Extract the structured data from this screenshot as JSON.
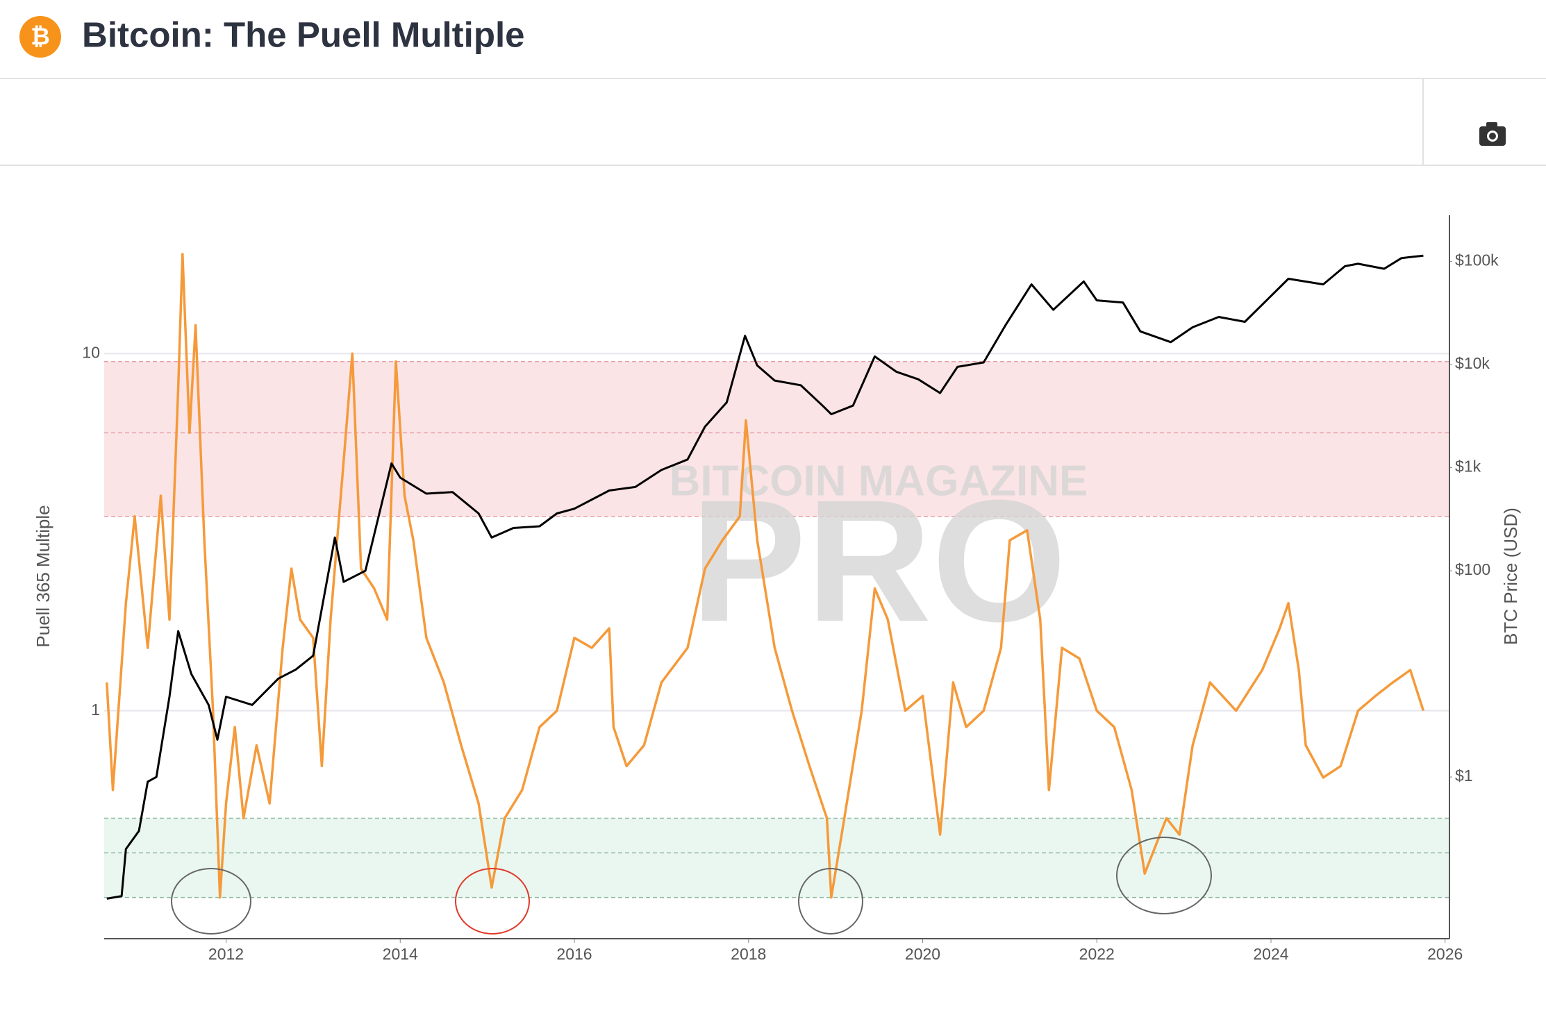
{
  "header": {
    "logo_symbol": "₿",
    "title": "Bitcoin: The Puell Multiple"
  },
  "chart_data": {
    "type": "line",
    "watermark": [
      "BITCOIN MAGAZINE",
      "PRO"
    ],
    "y_label": "Puell 365 Multiple",
    "y2_label": "BTC Price (USD)",
    "xlim": [
      2010.6,
      2026.05
    ],
    "xticks": [
      2012,
      2014,
      2016,
      2018,
      2020,
      2022,
      2024,
      2026
    ],
    "ylim": [
      0.23,
      24.4
    ],
    "ylog": true,
    "yticks": [
      1,
      10
    ],
    "y2lim": [
      0.027,
      281000
    ],
    "y2log": true,
    "y2ticks": [
      {
        "value": 1,
        "label": "$1"
      },
      {
        "value": 100,
        "label": "$100"
      },
      {
        "value": 1000,
        "label": "$1k"
      },
      {
        "value": 10000,
        "label": "$10k"
      },
      {
        "value": 100000,
        "label": "$100k"
      }
    ],
    "grid": true,
    "zones": [
      {
        "from": 3.5,
        "to": 9.5,
        "lines": [
          3.5,
          6,
          9.5
        ],
        "color": "#fbe4e6",
        "line_color": "#e8a0a8"
      },
      {
        "from": 0.3,
        "to": 0.5,
        "lines": [
          0.3,
          0.4,
          0.5
        ],
        "color": "#eaf7f0",
        "line_color": "#8fb8a0"
      }
    ],
    "series": [
      {
        "name": "Puell Multiple",
        "color": "#f59a3a",
        "axis": "y",
        "x": [
          2010.63,
          2010.7,
          2010.85,
          2010.95,
          2011.1,
          2011.25,
          2011.35,
          2011.45,
          2011.5,
          2011.58,
          2011.65,
          2011.75,
          2011.85,
          2011.93,
          2012.0,
          2012.1,
          2012.2,
          2012.35,
          2012.5,
          2012.65,
          2012.75,
          2012.85,
          2013.0,
          2013.1,
          2013.2,
          2013.35,
          2013.45,
          2013.55,
          2013.7,
          2013.85,
          2013.95,
          2014.05,
          2014.15,
          2014.3,
          2014.5,
          2014.7,
          2014.9,
          2015.05,
          2015.2,
          2015.4,
          2015.6,
          2015.8,
          2016.0,
          2016.2,
          2016.4,
          2016.45,
          2016.6,
          2016.8,
          2017.0,
          2017.3,
          2017.5,
          2017.7,
          2017.9,
          2017.97,
          2018.1,
          2018.3,
          2018.5,
          2018.7,
          2018.9,
          2018.95,
          2019.1,
          2019.3,
          2019.45,
          2019.6,
          2019.8,
          2020.0,
          2020.2,
          2020.35,
          2020.5,
          2020.7,
          2020.9,
          2021.0,
          2021.2,
          2021.35,
          2021.45,
          2021.6,
          2021.8,
          2022.0,
          2022.2,
          2022.4,
          2022.55,
          2022.8,
          2022.95,
          2023.1,
          2023.3,
          2023.6,
          2023.9,
          2024.1,
          2024.2,
          2024.32,
          2024.4,
          2024.6,
          2024.8,
          2025.0,
          2025.2,
          2025.4,
          2025.6,
          2025.75
        ],
        "values": [
          1.2,
          0.6,
          2.0,
          3.5,
          1.5,
          4.0,
          1.8,
          8,
          19,
          6,
          12,
          3,
          1.0,
          0.3,
          0.55,
          0.9,
          0.5,
          0.8,
          0.55,
          1.5,
          2.5,
          1.8,
          1.6,
          0.7,
          1.8,
          5,
          10,
          2.5,
          2.2,
          1.8,
          9.5,
          4,
          3,
          1.6,
          1.2,
          0.8,
          0.55,
          0.32,
          0.5,
          0.6,
          0.9,
          1.0,
          1.6,
          1.5,
          1.7,
          0.9,
          0.7,
          0.8,
          1.2,
          1.5,
          2.5,
          3,
          3.5,
          6.5,
          3,
          1.5,
          1.0,
          0.7,
          0.5,
          0.3,
          0.5,
          1.0,
          2.2,
          1.8,
          1.0,
          1.1,
          0.45,
          1.2,
          0.9,
          1.0,
          1.5,
          3,
          3.2,
          1.8,
          0.6,
          1.5,
          1.4,
          1.0,
          0.9,
          0.6,
          0.35,
          0.5,
          0.45,
          0.8,
          1.2,
          1.0,
          1.3,
          1.7,
          2.0,
          1.3,
          0.8,
          0.65,
          0.7,
          1.0,
          1.1,
          1.2,
          1.3,
          1.0
        ]
      },
      {
        "name": "BTC Price",
        "color": "#000000",
        "axis": "y2",
        "x": [
          2010.63,
          2010.8,
          2010.85,
          2011.0,
          2011.1,
          2011.2,
          2011.35,
          2011.45,
          2011.6,
          2011.8,
          2011.9,
          2012.0,
          2012.3,
          2012.6,
          2012.8,
          2013.0,
          2013.25,
          2013.35,
          2013.6,
          2013.9,
          2014.0,
          2014.3,
          2014.6,
          2014.9,
          2015.05,
          2015.3,
          2015.6,
          2015.8,
          2016.0,
          2016.4,
          2016.7,
          2017.0,
          2017.3,
          2017.5,
          2017.75,
          2017.96,
          2018.1,
          2018.3,
          2018.6,
          2018.85,
          2018.95,
          2019.2,
          2019.45,
          2019.7,
          2019.95,
          2020.2,
          2020.4,
          2020.7,
          2020.95,
          2021.25,
          2021.5,
          2021.85,
          2022.0,
          2022.3,
          2022.5,
          2022.85,
          2023.1,
          2023.4,
          2023.7,
          2023.95,
          2024.2,
          2024.6,
          2024.85,
          2025.0,
          2025.3,
          2025.5,
          2025.75
        ],
        "values": [
          0.066,
          0.07,
          0.2,
          0.3,
          0.9,
          1.0,
          6,
          26,
          10,
          5,
          2.3,
          6,
          5,
          9,
          11,
          15,
          210,
          78,
          100,
          1100,
          800,
          560,
          580,
          360,
          210,
          260,
          270,
          360,
          400,
          600,
          650,
          950,
          1200,
          2500,
          4300,
          19000,
          9800,
          7000,
          6300,
          4000,
          3300,
          4000,
          12000,
          8500,
          7200,
          5300,
          9500,
          10500,
          24000,
          60000,
          34000,
          64000,
          42000,
          40000,
          21000,
          16500,
          23000,
          29000,
          26000,
          42000,
          68000,
          60000,
          90000,
          95000,
          85000,
          108000,
          114000
        ]
      }
    ]
  }
}
